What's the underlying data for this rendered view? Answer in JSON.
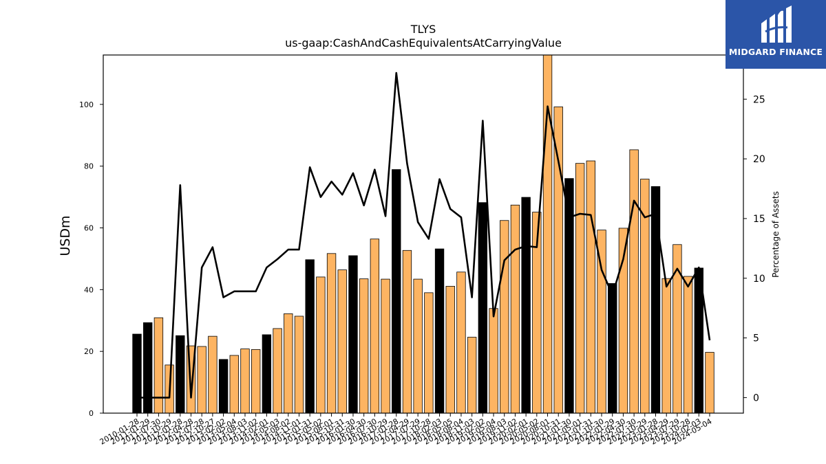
{
  "brand": {
    "name": "MIDGARD FINANCE",
    "bg_color": "#2b55a8"
  },
  "chart_data": {
    "type": "bar+line",
    "title": "TLYS",
    "subtitle": "us-gaap:CashAndCashEquivalentsAtCarryingValue",
    "ylabel": "USDm",
    "y2label": "Percentage of Assets",
    "ylim": [
      0,
      116
    ],
    "y2lim": [
      -1.3,
      28.7
    ],
    "yticks": [
      0,
      20,
      40,
      60,
      80,
      100
    ],
    "y2ticks": [
      0,
      5,
      10,
      15,
      20,
      25
    ],
    "colors": {
      "annual_bar": "#000000",
      "quarter_bar": "#fdb462",
      "line": "#000000"
    },
    "categories": [
      "2010-01-28",
      "2011-01-29",
      "2011-07-30",
      "2011-10-29",
      "2012-01-28",
      "2012-04-28",
      "2012-07-28",
      "2012-10-27",
      "2013-02-02",
      "2013-05-04",
      "2013-08-03",
      "2013-11-02",
      "2014-02-01",
      "2014-05-03",
      "2014-08-02",
      "2014-11-01",
      "2015-01-31",
      "2015-05-02",
      "2015-08-01",
      "2015-10-31",
      "2016-01-30",
      "2016-04-30",
      "2016-07-30",
      "2016-10-29",
      "2017-01-28",
      "2017-04-29",
      "2017-07-29",
      "2017-10-28",
      "2018-02-03",
      "2018-05-05",
      "2018-08-04",
      "2018-11-03",
      "2019-02-02",
      "2019-05-04",
      "2019-08-03",
      "2019-11-02",
      "2020-02-01",
      "2020-05-02",
      "2020-08-01",
      "2020-10-31",
      "2021-01-30",
      "2021-05-01",
      "2021-07-31",
      "2021-10-30",
      "2022-01-29",
      "2022-04-30",
      "2022-07-30",
      "2022-10-29",
      "2023-01-28",
      "2023-04-29",
      "2023-07-29",
      "2023-10-28",
      "2024-02-03",
      "2024-05-04"
    ],
    "series": [
      {
        "kind": "bar",
        "values": [
          25.6,
          29.3,
          30.9,
          15.6,
          25.1,
          21.8,
          21.6,
          24.9,
          17.4,
          18.7,
          20.8,
          20.6,
          25.4,
          27.4,
          32.2,
          31.4,
          49.7,
          44.1,
          51.7,
          46.4,
          51.0,
          43.5,
          56.4,
          43.4,
          78.9,
          52.7,
          43.4,
          39.0,
          53.2,
          41.1,
          45.7,
          24.6,
          68.2,
          33.9,
          62.4,
          67.4,
          69.9,
          65.1,
          116.8,
          99.2,
          76.0,
          80.9,
          81.7,
          59.3,
          42.0,
          59.9,
          85.3,
          75.8,
          73.4,
          43.6,
          54.6,
          44.3,
          47.0,
          19.7
        ],
        "annual": [
          true,
          true,
          false,
          false,
          true,
          false,
          false,
          false,
          true,
          false,
          false,
          false,
          true,
          false,
          false,
          false,
          true,
          false,
          false,
          false,
          true,
          false,
          false,
          false,
          true,
          false,
          false,
          false,
          true,
          false,
          false,
          false,
          true,
          false,
          false,
          false,
          true,
          false,
          false,
          false,
          true,
          false,
          false,
          false,
          true,
          false,
          false,
          false,
          true,
          false,
          false,
          false,
          true,
          false
        ]
      },
      {
        "kind": "line",
        "axis": "right",
        "values": [
          0.0,
          0.0,
          0.0,
          0.0,
          17.8,
          0.0,
          10.9,
          12.6,
          8.4,
          8.9,
          8.9,
          8.9,
          10.9,
          11.6,
          12.4,
          12.4,
          19.3,
          16.8,
          18.1,
          17.0,
          18.8,
          16.1,
          19.1,
          15.2,
          27.2,
          19.6,
          14.7,
          13.3,
          18.3,
          15.8,
          15.1,
          8.4,
          23.2,
          6.8,
          11.5,
          12.4,
          12.7,
          12.6,
          24.4,
          19.8,
          15.1,
          15.4,
          15.3,
          10.7,
          8.6,
          11.6,
          16.5,
          15.1,
          15.4,
          9.3,
          10.8,
          9.3,
          10.9,
          4.8
        ]
      }
    ]
  }
}
